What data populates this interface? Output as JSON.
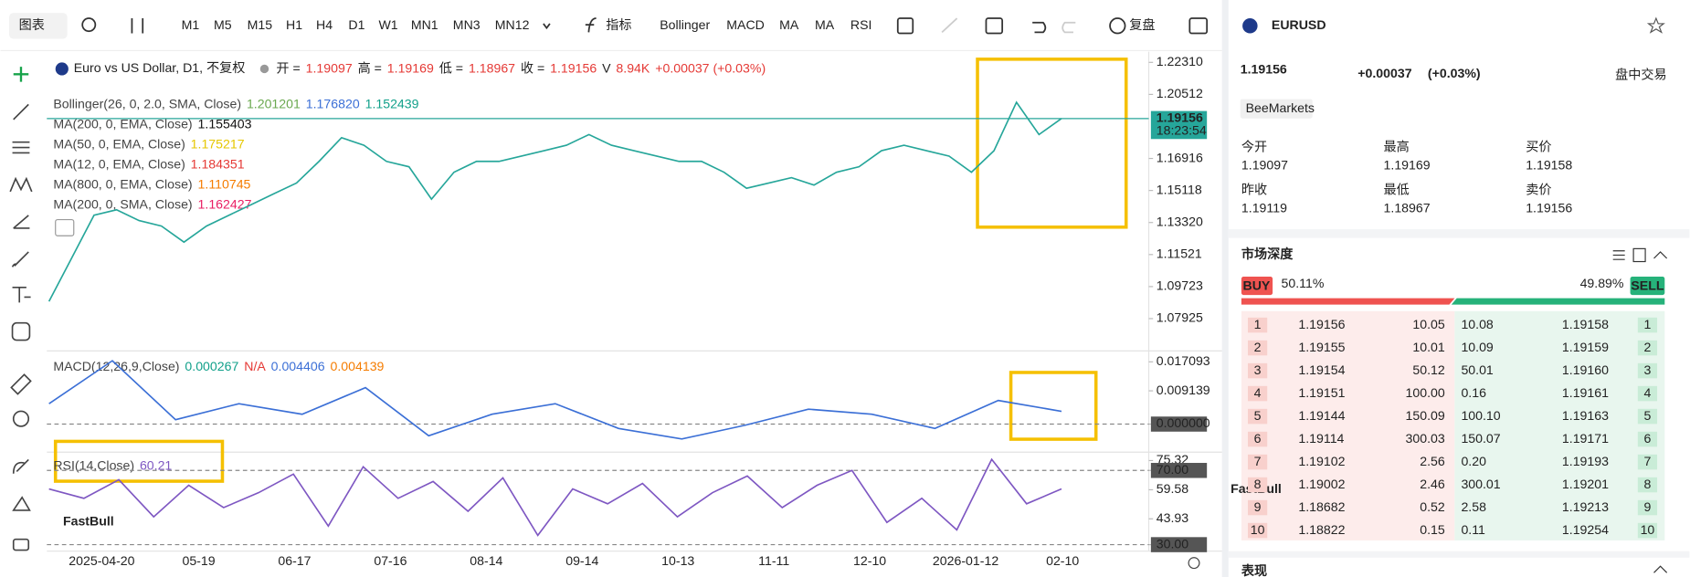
{
  "toolbar": {
    "chart_type": "图表",
    "timeframes": [
      "M1",
      "M5",
      "M15",
      "H1",
      "H4",
      "D1",
      "W1",
      "MN1",
      "MN3",
      "MN12"
    ],
    "active_timeframe": "D1",
    "indicator_button": "指标",
    "indicators": [
      "Bollinger",
      "MACD",
      "MA",
      "MA",
      "RSI"
    ],
    "replay": "复盘"
  },
  "legend": {
    "symbol_title": "Euro vs US Dollar, D1, 不复权",
    "ohlc": [
      {
        "label": "开 =",
        "value": "1.19097"
      },
      {
        "label": "高 =",
        "value": "1.19169"
      },
      {
        "label": "低 =",
        "value": "1.18967"
      },
      {
        "label": "收 =",
        "value": "1.19156"
      }
    ],
    "volume_label": "V",
    "volume": "8.94K",
    "change": "+0.00037 (+0.03%)"
  },
  "studies": [
    {
      "name": "Bollinger(26, 0, 2.0, SMA, Close)",
      "values": [
        {
          "text": "1.201201",
          "color": "#6aa84f"
        },
        {
          "text": "1.176820",
          "color": "#3b6fd6"
        },
        {
          "text": "1.152439",
          "color": "#11a08a"
        }
      ]
    },
    {
      "name": "MA(200, 0, EMA, Close)",
      "values": [
        {
          "text": "1.155403",
          "color": "#111111"
        }
      ]
    },
    {
      "name": "MA(50, 0, EMA, Close)",
      "values": [
        {
          "text": "1.175217",
          "color": "#e6c700"
        }
      ]
    },
    {
      "name": "MA(12, 0, EMA, Close)",
      "values": [
        {
          "text": "1.184351",
          "color": "#e53935"
        }
      ]
    },
    {
      "name": "MA(800, 0, EMA, Close)",
      "values": [
        {
          "text": "1.110745",
          "color": "#f57c00"
        }
      ]
    },
    {
      "name": "MA(200, 0, SMA, Close)",
      "values": [
        {
          "text": "1.162427",
          "color": "#e91e63"
        }
      ]
    }
  ],
  "macd_legend": {
    "name": "MACD(12,26,9,Close)",
    "values": [
      {
        "text": "0.000267",
        "color": "#11a08a"
      },
      {
        "text": "N/A",
        "color": "#e53935"
      },
      {
        "text": "0.004406",
        "color": "#3b6fd6"
      },
      {
        "text": "0.004139",
        "color": "#f57c00"
      }
    ]
  },
  "rsi_legend": {
    "name": "RSI(14,Close)",
    "values": [
      {
        "text": "60.21",
        "color": "#7e57c2"
      }
    ]
  },
  "price_chart": {
    "ylim": [
      1.0611,
      1.2279
    ],
    "yticks": [
      {
        "value": 1.2231,
        "label": "1.22310"
      },
      1.20512,
      1.16916,
      1.15118,
      {
        "value": 1.1332,
        "label": "1.13320"
      },
      1.11521,
      1.09723,
      1.07925
    ],
    "close": [
      1.0889,
      1.1131,
      1.1373,
      1.1403,
      1.1343,
      1.1312,
      1.1222,
      1.1312,
      1.1373,
      1.1433,
      1.1494,
      1.1554,
      1.1675,
      1.1808,
      1.1766,
      1.1675,
      1.1645,
      1.1463,
      1.1614,
      1.1675,
      1.1675,
      1.1705,
      1.1735,
      1.1766,
      1.1826,
      1.1766,
      1.1735,
      1.1705,
      1.1675,
      1.1675,
      1.1614,
      1.1524,
      1.1554,
      1.1584,
      1.1542,
      1.1614,
      1.1645,
      1.1735,
      1.1766,
      1.1735,
      1.1705,
      1.1614,
      1.1735,
      1.2007,
      1.1826,
      1.1916
    ],
    "color": "#26a69a",
    "last_price": 1.19156,
    "countdown": "18:23:54"
  },
  "macd_pane": {
    "ylim": [
      -0.0077,
      0.0195
    ],
    "yticks": [
      0.017093,
      0.009139,
      {
        "value": 0,
        "label": "0.000000"
      }
    ],
    "values": [
      0.0056,
      0.0174,
      0.0012,
      0.0056,
      0.0027,
      0.01,
      -0.0032,
      0.0027,
      0.0056,
      -0.0012,
      -0.0041,
      -0.0003,
      0.0041,
      0.0027,
      -0.0012,
      0.0065,
      0.0035
    ],
    "color": "#3b6fd6"
  },
  "rsi_pane": {
    "ylim": [
      26.5,
      78.7
    ],
    "yticks": [
      75.32,
      {
        "value": 70,
        "label": "70.00"
      },
      59.58,
      43.93,
      {
        "value": 30,
        "label": "30.00"
      }
    ],
    "values": [
      60,
      55,
      65,
      45,
      62,
      50,
      58,
      68,
      40,
      72,
      55,
      64,
      48,
      66,
      35,
      60,
      52,
      63,
      45,
      58,
      67,
      50,
      62,
      70,
      42,
      55,
      38,
      76,
      52,
      60
    ],
    "color": "#7e57c2"
  },
  "dates": [
    "2025-04-20",
    "05-19",
    "06-17",
    "07-16",
    "08-14",
    "09-14",
    "10-13",
    "11-11",
    "12-10",
    "2026-01-12",
    "02-10"
  ],
  "watermark": "FastBull",
  "quote": {
    "symbol": "EURUSD",
    "price": "1.19156",
    "change": "+0.00037",
    "change_pct": "(+0.03%)",
    "session": "盘中交易",
    "broker": "BeeMarkets",
    "stats": [
      {
        "label": "今开",
        "value": "1.19097"
      },
      {
        "label": "最高",
        "value": "1.19169"
      },
      {
        "label": "买价",
        "value": "1.19158"
      },
      {
        "label": "昨收",
        "value": "1.19119"
      },
      {
        "label": "最低",
        "value": "1.18967"
      },
      {
        "label": "卖价",
        "value": "1.19156"
      }
    ]
  },
  "depth": {
    "title": "市场深度",
    "buy_label": "BUY",
    "buy_pct": "50.11%",
    "sell_pct": "49.89%",
    "sell_label": "SELL",
    "rows": [
      {
        "index": "1",
        "bid": "1.19156",
        "bid_qty": "10.05",
        "ask_qty": "10.08",
        "ask": "1.19158"
      },
      {
        "index": "2",
        "bid": "1.19155",
        "bid_qty": "10.01",
        "ask_qty": "10.09",
        "ask": "1.19159"
      },
      {
        "index": "3",
        "bid": "1.19154",
        "bid_qty": "50.12",
        "ask_qty": "50.01",
        "ask": "1.19160"
      },
      {
        "index": "4",
        "bid": "1.19151",
        "bid_qty": "100.00",
        "ask_qty": "0.16",
        "ask": "1.19161"
      },
      {
        "index": "5",
        "bid": "1.19144",
        "bid_qty": "150.09",
        "ask_qty": "100.10",
        "ask": "1.19163"
      },
      {
        "index": "6",
        "bid": "1.19114",
        "bid_qty": "300.03",
        "ask_qty": "150.07",
        "ask": "1.19171"
      },
      {
        "index": "7",
        "bid": "1.19102",
        "bid_qty": "2.56",
        "ask_qty": "0.20",
        "ask": "1.19193"
      },
      {
        "index": "8",
        "bid": "1.19002",
        "bid_qty": "2.46",
        "ask_qty": "300.01",
        "ask": "1.19201"
      },
      {
        "index": "9",
        "bid": "1.18682",
        "bid_qty": "0.52",
        "ask_qty": "2.58",
        "ask": "1.19213"
      },
      {
        "index": "10",
        "bid": "1.18822",
        "bid_qty": "0.15",
        "ask_qty": "0.11",
        "ask": "1.19254"
      }
    ]
  },
  "performance": {
    "title": "表现"
  }
}
